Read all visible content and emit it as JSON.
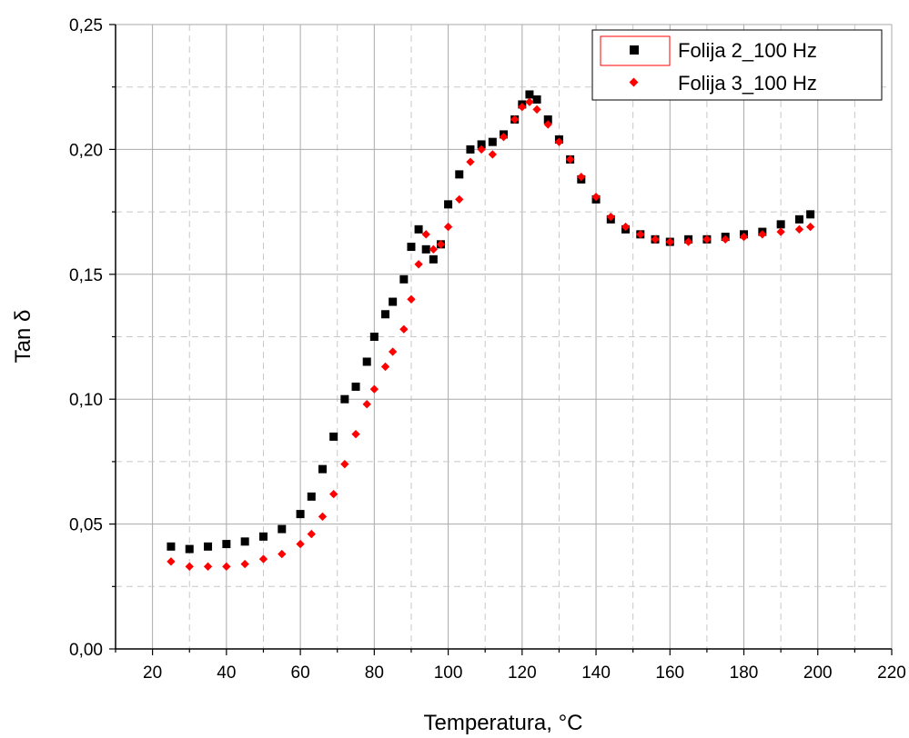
{
  "chart_data": {
    "type": "scatter",
    "title": "",
    "xlabel": "Temperatura, °C",
    "ylabel": "Tan δ",
    "xlim": [
      10,
      220
    ],
    "ylim": [
      0,
      0.25
    ],
    "x_ticks": [
      "20",
      "40",
      "60",
      "80",
      "100",
      "120",
      "140",
      "160",
      "180",
      "200",
      "220"
    ],
    "y_ticks": [
      "0,00",
      "0,05",
      "0,10",
      "0,15",
      "0,20",
      "0,25"
    ],
    "grid": true,
    "legend_position": "top-right",
    "series": [
      {
        "name": "Folija 2_100 Hz",
        "color": "#000000",
        "marker": "square",
        "x": [
          25,
          30,
          35,
          40,
          45,
          50,
          55,
          60,
          63,
          66,
          69,
          72,
          75,
          78,
          80,
          83,
          85,
          88,
          90,
          92,
          94,
          96,
          98,
          100,
          103,
          106,
          109,
          112,
          115,
          118,
          120,
          122,
          124,
          127,
          130,
          133,
          136,
          140,
          144,
          148,
          152,
          156,
          160,
          165,
          170,
          175,
          180,
          185,
          190,
          195,
          198
        ],
        "y": [
          0.041,
          0.04,
          0.041,
          0.042,
          0.043,
          0.045,
          0.048,
          0.054,
          0.061,
          0.072,
          0.085,
          0.1,
          0.105,
          0.115,
          0.125,
          0.134,
          0.139,
          0.148,
          0.161,
          0.168,
          0.16,
          0.156,
          0.162,
          0.178,
          0.19,
          0.2,
          0.202,
          0.203,
          0.206,
          0.212,
          0.218,
          0.222,
          0.22,
          0.212,
          0.204,
          0.196,
          0.188,
          0.18,
          0.172,
          0.168,
          0.166,
          0.164,
          0.163,
          0.164,
          0.164,
          0.165,
          0.166,
          0.167,
          0.17,
          0.172,
          0.174
        ]
      },
      {
        "name": "Folija 3_100 Hz",
        "color": "#ff0000",
        "marker": "diamond",
        "x": [
          25,
          30,
          35,
          40,
          45,
          50,
          55,
          60,
          63,
          66,
          69,
          72,
          75,
          78,
          80,
          83,
          85,
          88,
          90,
          92,
          94,
          96,
          98,
          100,
          103,
          106,
          109,
          112,
          115,
          118,
          120,
          122,
          124,
          127,
          130,
          133,
          136,
          140,
          144,
          148,
          152,
          156,
          160,
          165,
          170,
          175,
          180,
          185,
          190,
          195,
          198
        ],
        "y": [
          0.035,
          0.033,
          0.033,
          0.033,
          0.034,
          0.036,
          0.038,
          0.042,
          0.046,
          0.053,
          0.062,
          0.074,
          0.086,
          0.098,
          0.104,
          0.113,
          0.119,
          0.128,
          0.14,
          0.154,
          0.166,
          0.16,
          0.162,
          0.169,
          0.18,
          0.195,
          0.2,
          0.198,
          0.205,
          0.212,
          0.217,
          0.219,
          0.216,
          0.21,
          0.203,
          0.196,
          0.189,
          0.181,
          0.173,
          0.169,
          0.166,
          0.164,
          0.163,
          0.163,
          0.164,
          0.164,
          0.165,
          0.166,
          0.167,
          0.168,
          0.169
        ]
      }
    ]
  }
}
